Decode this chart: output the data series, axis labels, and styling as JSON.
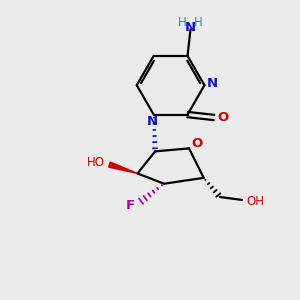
{
  "bg_color": "#ebebeb",
  "atom_colors": {
    "C": "#000000",
    "N": "#1010cc",
    "O": "#cc0000",
    "F": "#aa00aa",
    "H": "#448888"
  },
  "bond_color": "#000000",
  "figsize": [
    3.0,
    3.0
  ],
  "dpi": 100
}
